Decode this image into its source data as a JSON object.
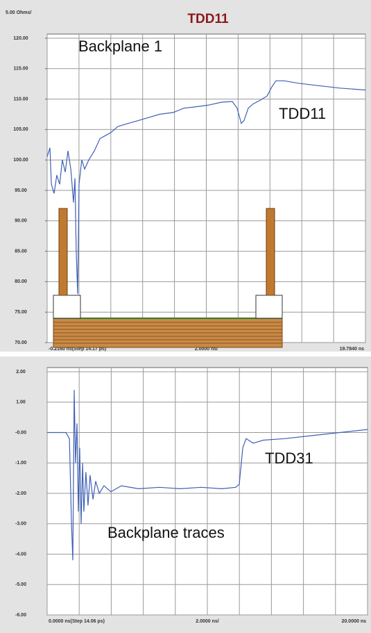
{
  "chart_data": [
    {
      "type": "line",
      "title": "TDD11",
      "y_scale_label": {
        "value": 5,
        "label": "5.00 Ohms/"
      },
      "x_per_div": {
        "value": 2,
        "label": "2.0000 ns/"
      },
      "xlim": [
        -0.216,
        19.784
      ],
      "xticks": [
        {
          "value": -0.216,
          "label": "-0.2160 ns(Step 14.17 ps)"
        },
        {
          "value": 19.784,
          "label": "19.7840 ns"
        }
      ],
      "ylim": [
        70,
        120
      ],
      "yticks": [
        {
          "value": 70,
          "label": "70.00"
        },
        {
          "value": 75,
          "label": "75.00"
        },
        {
          "value": 80,
          "label": "80.00"
        },
        {
          "value": 85,
          "label": "85.00"
        },
        {
          "value": 90,
          "label": "90.00"
        },
        {
          "value": 95,
          "label": "95.00"
        },
        {
          "value": 100,
          "label": "100.00"
        },
        {
          "value": 105,
          "label": "105.00"
        },
        {
          "value": 110,
          "label": "110.00"
        },
        {
          "value": 115,
          "label": "115.00"
        },
        {
          "value": 120,
          "label": "120.00"
        }
      ],
      "grid": true,
      "annotations": [
        "Backplane 1",
        "TDD11"
      ],
      "x": [
        -0.22,
        -0.04,
        0.05,
        0.22,
        0.39,
        0.57,
        0.74,
        0.92,
        1.09,
        1.27,
        1.44,
        1.53,
        1.61,
        1.7,
        1.79,
        1.96,
        2.14,
        2.4,
        2.75,
        3.1,
        3.44,
        3.79,
        4.23,
        4.88,
        5.54,
        6.19,
        6.84,
        7.71,
        8.37,
        9.02,
        9.89,
        10.76,
        11.42,
        11.72,
        11.98,
        12.16,
        12.42,
        12.72,
        13.16,
        13.6,
        13.9,
        14.16,
        14.69,
        15.56,
        16.86,
        18.17,
        19.78
      ],
      "series": [
        {
          "color": "#3f5fb6",
          "values": [
            100.5,
            102,
            96,
            94.5,
            97.5,
            96,
            100,
            98,
            101.5,
            98.5,
            93,
            97,
            85,
            78,
            96,
            100,
            98.5,
            100,
            101.5,
            103.5,
            104,
            104.5,
            105.5,
            106,
            106.5,
            107,
            107.5,
            107.8,
            108.5,
            108.7,
            109,
            109.5,
            109.6,
            108.5,
            106,
            106.5,
            108.5,
            109.2,
            109.8,
            110.5,
            112,
            113,
            113,
            112.6,
            112.2,
            111.8,
            111.5
          ]
        }
      ]
    },
    {
      "type": "line",
      "x_per_div": {
        "value": 2,
        "label": "2.0000 ns/"
      },
      "xlim": [
        0,
        20
      ],
      "xticks": [
        {
          "value": 0,
          "label": "0.0000 ns(Step 14.06 ps)"
        },
        {
          "value": 20,
          "label": "20.0000 ns"
        }
      ],
      "ylim": [
        -6,
        2
      ],
      "yticks": [
        {
          "value": -6,
          "label": "-6.00"
        },
        {
          "value": -5,
          "label": "-5.00"
        },
        {
          "value": -4,
          "label": "-4.00"
        },
        {
          "value": -3,
          "label": "-3.00"
        },
        {
          "value": -2,
          "label": "-2.00"
        },
        {
          "value": -1,
          "label": "-1.00"
        },
        {
          "value": 0,
          "label": "-0.00"
        },
        {
          "value": 1,
          "label": "1.00"
        },
        {
          "value": 2,
          "label": "2.00"
        }
      ],
      "grid": true,
      "annotations": [
        "TDD31",
        "Backplane traces"
      ],
      "x": [
        0,
        1.17,
        1.39,
        1.52,
        1.6,
        1.69,
        1.77,
        1.86,
        1.95,
        2.03,
        2.12,
        2.21,
        2.29,
        2.42,
        2.55,
        2.68,
        2.86,
        3.03,
        3.25,
        3.55,
        3.98,
        4.63,
        5.71,
        7.01,
        8.31,
        9.61,
        10.91,
        11.77,
        11.99,
        12.21,
        12.42,
        12.86,
        13.51,
        14.81,
        16.54,
        18.27,
        20.0
      ],
      "series": [
        {
          "color": "#3f5fb6",
          "values": [
            0,
            0,
            -0.2,
            -3.0,
            -4.2,
            1.4,
            -1.0,
            0.3,
            -2.6,
            -0.5,
            -3.0,
            -1.0,
            -2.6,
            -1.3,
            -2.4,
            -1.4,
            -2.2,
            -1.6,
            -2.0,
            -1.75,
            -1.95,
            -1.75,
            -1.85,
            -1.8,
            -1.85,
            -1.8,
            -1.85,
            -1.8,
            -1.7,
            -0.5,
            -0.2,
            -0.35,
            -0.25,
            -0.2,
            -0.1,
            0.0,
            0.1
          ]
        }
      ]
    }
  ]
}
